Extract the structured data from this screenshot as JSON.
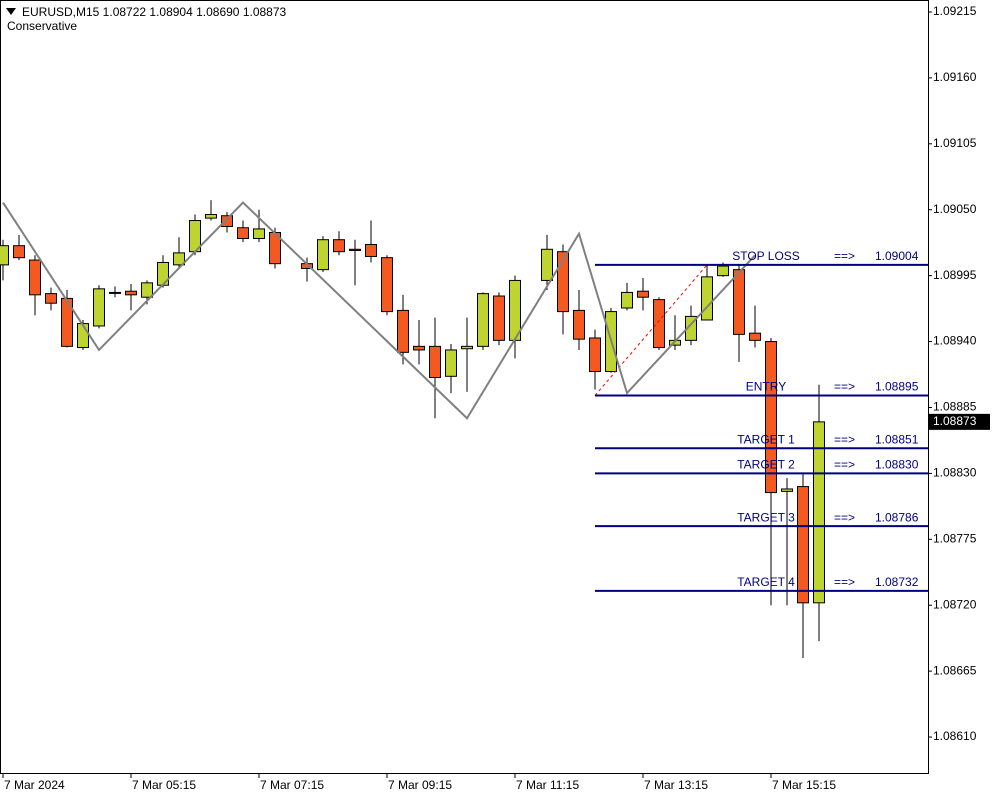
{
  "chart_data": {
    "type": "candlestick",
    "title": "EURUSD,M15  1.08722 1.08904 1.08690 1.08873",
    "subtitle": "Conservative",
    "categories": [
      "7 Mar 2024",
      null,
      null,
      null,
      null,
      null,
      null,
      null,
      "7 Mar 05:15",
      null,
      null,
      null,
      null,
      null,
      null,
      null,
      "7 Mar 07:15",
      null,
      null,
      null,
      null,
      null,
      null,
      null,
      "7 Mar 09:15",
      null,
      null,
      null,
      null,
      null,
      null,
      null,
      "7 Mar 11:15",
      null,
      null,
      null,
      null,
      null,
      null,
      null,
      "7 Mar 13:15",
      null,
      null,
      null,
      null,
      null,
      null,
      null,
      "7 Mar 15:15",
      null,
      null,
      null
    ],
    "open": [
      1.09004,
      1.0902,
      1.09008,
      1.0898,
      1.08976,
      1.08935,
      1.08953,
      1.08981,
      1.08982,
      1.08977,
      1.08987,
      1.09004,
      1.09015,
      1.09043,
      1.09045,
      1.09035,
      1.09026,
      1.09031,
      null,
      1.09005,
      1.09,
      1.09025,
      1.09017,
      1.09021,
      1.0901,
      1.08966,
      1.08936,
      1.08936,
      1.08911,
      1.08934,
      1.08936,
      1.08978,
      1.08941,
      null,
      1.08991,
      1.09015,
      1.08966,
      1.08943,
      1.08915,
      1.08968,
      1.08982,
      1.08975,
      1.08937,
      1.08941,
      1.08958,
      1.08995,
      1.09,
      1.08947,
      1.0894,
      1.08815,
      1.08819,
      1.08722
    ],
    "high": [
      1.09025,
      1.09029,
      1.09012,
      1.08985,
      1.08983,
      1.08958,
      1.08987,
      1.08986,
      1.08988,
      1.08991,
      1.09012,
      1.09027,
      1.09046,
      1.09058,
      1.09048,
      1.09041,
      1.0905,
      1.09035,
      null,
      1.0901,
      1.09028,
      1.09032,
      1.09025,
      1.09041,
      1.09012,
      1.08979,
      1.08958,
      1.0896,
      1.08938,
      1.0896,
      1.08981,
      1.08981,
      1.08995,
      null,
      1.09029,
      1.09021,
      1.08983,
      1.0895,
      1.08968,
      1.08989,
      1.08993,
      1.08977,
      1.08962,
      1.0897,
      1.09004,
      1.09006,
      1.09004,
      1.0897,
      1.08943,
      1.08826,
      1.0883,
      1.08904
    ],
    "low": [
      1.08991,
      1.09008,
      1.08962,
      1.08966,
      1.08935,
      1.08933,
      1.08951,
      1.08977,
      1.08966,
      1.08971,
      1.08985,
      1.09001,
      1.09012,
      1.09041,
      1.09031,
      1.09023,
      1.09023,
      1.09001,
      null,
      1.0899,
      1.08998,
      1.09012,
      1.08987,
      1.09006,
      1.08962,
      1.08921,
      1.08921,
      1.08876,
      1.08897,
      1.08898,
      1.08933,
      1.08937,
      1.08926,
      null,
      1.08983,
      1.08946,
      1.08933,
      1.089,
      1.08914,
      1.08966,
      1.08966,
      1.08933,
      1.08933,
      1.08937,
      1.08958,
      1.08994,
      1.08923,
      1.08935,
      1.0872,
      1.0872,
      1.08676,
      1.0869
    ],
    "close": [
      1.0902,
      1.0901,
      1.08979,
      1.08972,
      1.08936,
      1.08955,
      1.08984,
      1.08981,
      1.08979,
      1.08989,
      1.09006,
      1.09014,
      1.09041,
      1.09046,
      1.09036,
      1.09026,
      1.09034,
      1.09005,
      null,
      1.09001,
      1.09025,
      1.09015,
      1.09016,
      1.09011,
      1.08965,
      1.08931,
      1.08933,
      1.0891,
      1.08933,
      1.08936,
      1.0898,
      1.08941,
      1.08991,
      null,
      1.09017,
      1.08965,
      1.08942,
      1.08915,
      1.08965,
      1.08981,
      1.08977,
      1.08935,
      1.08941,
      1.08961,
      1.08994,
      1.09003,
      1.08946,
      1.08941,
      1.08814,
      1.08817,
      1.08722,
      1.08873
    ],
    "up_color": "#bfd431",
    "down_color": "#f25a22",
    "zigzag": {
      "color": "#808080",
      "x": [
        0,
        6,
        15,
        29,
        36,
        39,
        47
      ],
      "values": [
        1.09056,
        1.08933,
        1.09056,
        1.08876,
        1.0903,
        1.08897,
        1.09012
      ]
    },
    "pattern_line": {
      "color": "#ff0000",
      "x": [
        37,
        44
      ],
      "values": [
        1.08895,
        1.09004
      ]
    },
    "levels": [
      {
        "name": "STOP LOSS",
        "arrow": "==>",
        "value": 1.09004
      },
      {
        "name": "ENTRY",
        "arrow": "==>",
        "value": 1.08895
      },
      {
        "name": "TARGET 1",
        "arrow": "==>",
        "value": 1.08851
      },
      {
        "name": "TARGET 2",
        "arrow": "==>",
        "value": {
          "value": 1.0883,
          "label": "1.08830"
        }
      },
      {
        "name": "TARGET 3",
        "arrow": "==>",
        "value": 1.08786
      },
      {
        "name": "TARGET 4",
        "arrow": "==>",
        "value": 1.08732
      }
    ],
    "level_color": "#000080",
    "last_price": 1.08873,
    "ylim": [
      1.0858,
      1.09225
    ],
    "yticks": [
      1.09215,
      {
        "value": 1.0916,
        "label": "1.09160"
      },
      1.09105,
      {
        "value": 1.0905,
        "label": "1.09050"
      },
      1.08995,
      {
        "value": 1.0894,
        "label": "1.08940"
      },
      1.08885,
      {
        "value": 1.0883,
        "label": "1.08830"
      },
      1.08775,
      {
        "value": 1.0872,
        "label": "1.08720"
      },
      1.08665,
      {
        "value": 1.0861,
        "label": "1.08610"
      }
    ]
  }
}
